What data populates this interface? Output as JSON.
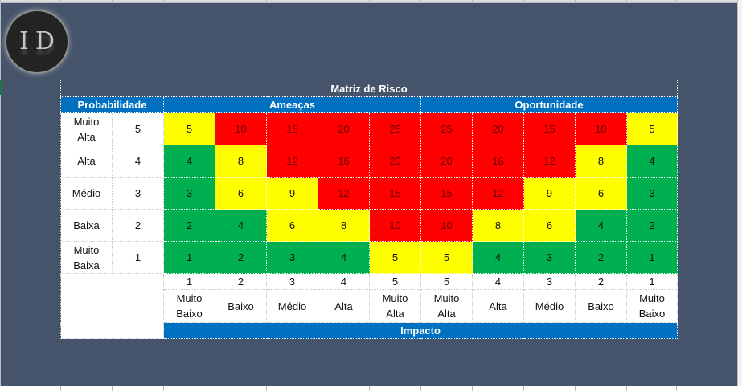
{
  "logo": {
    "text": "ID"
  },
  "matrix": {
    "title": "Matriz de Risco",
    "headers": {
      "probability": "Probabilidade",
      "threats": "Ameaças",
      "opportunities": "Oportunidade",
      "impact": "Impacto"
    },
    "colors": {
      "red": "#ff0000",
      "yellow": "#ffff00",
      "green": "#00b050",
      "header_blue": "#0070c0",
      "background": "#45546a"
    },
    "rows": [
      {
        "label": "Muito Alta",
        "label_l1": "Muito",
        "label_l2": "Alta",
        "level": "5",
        "values": [
          "5",
          "10",
          "15",
          "20",
          "25",
          "25",
          "20",
          "15",
          "10",
          "5"
        ],
        "colors": [
          "Y",
          "R",
          "R",
          "R",
          "R",
          "R",
          "R",
          "R",
          "R",
          "Y"
        ]
      },
      {
        "label": "Alta",
        "label_l1": "Alta",
        "label_l2": "",
        "level": "4",
        "values": [
          "4",
          "8",
          "12",
          "16",
          "20",
          "20",
          "16",
          "12",
          "8",
          "4"
        ],
        "colors": [
          "G",
          "Y",
          "R",
          "R",
          "R",
          "R",
          "R",
          "R",
          "Y",
          "G"
        ]
      },
      {
        "label": "Médio",
        "label_l1": "Médio",
        "label_l2": "",
        "level": "3",
        "values": [
          "3",
          "6",
          "9",
          "12",
          "15",
          "15",
          "12",
          "9",
          "6",
          "3"
        ],
        "colors": [
          "G",
          "Y",
          "Y",
          "R",
          "R",
          "R",
          "R",
          "Y",
          "Y",
          "G"
        ]
      },
      {
        "label": "Baixa",
        "label_l1": "Baixa",
        "label_l2": "",
        "level": "2",
        "values": [
          "2",
          "4",
          "6",
          "8",
          "10",
          "10",
          "8",
          "6",
          "4",
          "2"
        ],
        "colors": [
          "G",
          "G",
          "Y",
          "Y",
          "R",
          "R",
          "Y",
          "Y",
          "G",
          "G"
        ]
      },
      {
        "label": "Muito Baixa",
        "label_l1": "Muito",
        "label_l2": "Baixa",
        "level": "1",
        "values": [
          "1",
          "2",
          "3",
          "4",
          "5",
          "5",
          "4",
          "3",
          "2",
          "1"
        ],
        "colors": [
          "G",
          "G",
          "G",
          "G",
          "Y",
          "Y",
          "G",
          "G",
          "G",
          "G"
        ]
      }
    ],
    "impact_numbers": [
      "1",
      "2",
      "3",
      "4",
      "5",
      "5",
      "4",
      "3",
      "2",
      "1"
    ],
    "impact_labels": [
      {
        "l1": "Muito",
        "l2": "Baixo"
      },
      {
        "l1": "Baixo",
        "l2": ""
      },
      {
        "l1": "Médio",
        "l2": ""
      },
      {
        "l1": "Alta",
        "l2": ""
      },
      {
        "l1": "Muito",
        "l2": "Alta"
      },
      {
        "l1": "Muito",
        "l2": "Alta"
      },
      {
        "l1": "Alta",
        "l2": ""
      },
      {
        "l1": "Médio",
        "l2": ""
      },
      {
        "l1": "Baixo",
        "l2": ""
      },
      {
        "l1": "Muito",
        "l2": "Baixo"
      }
    ]
  }
}
